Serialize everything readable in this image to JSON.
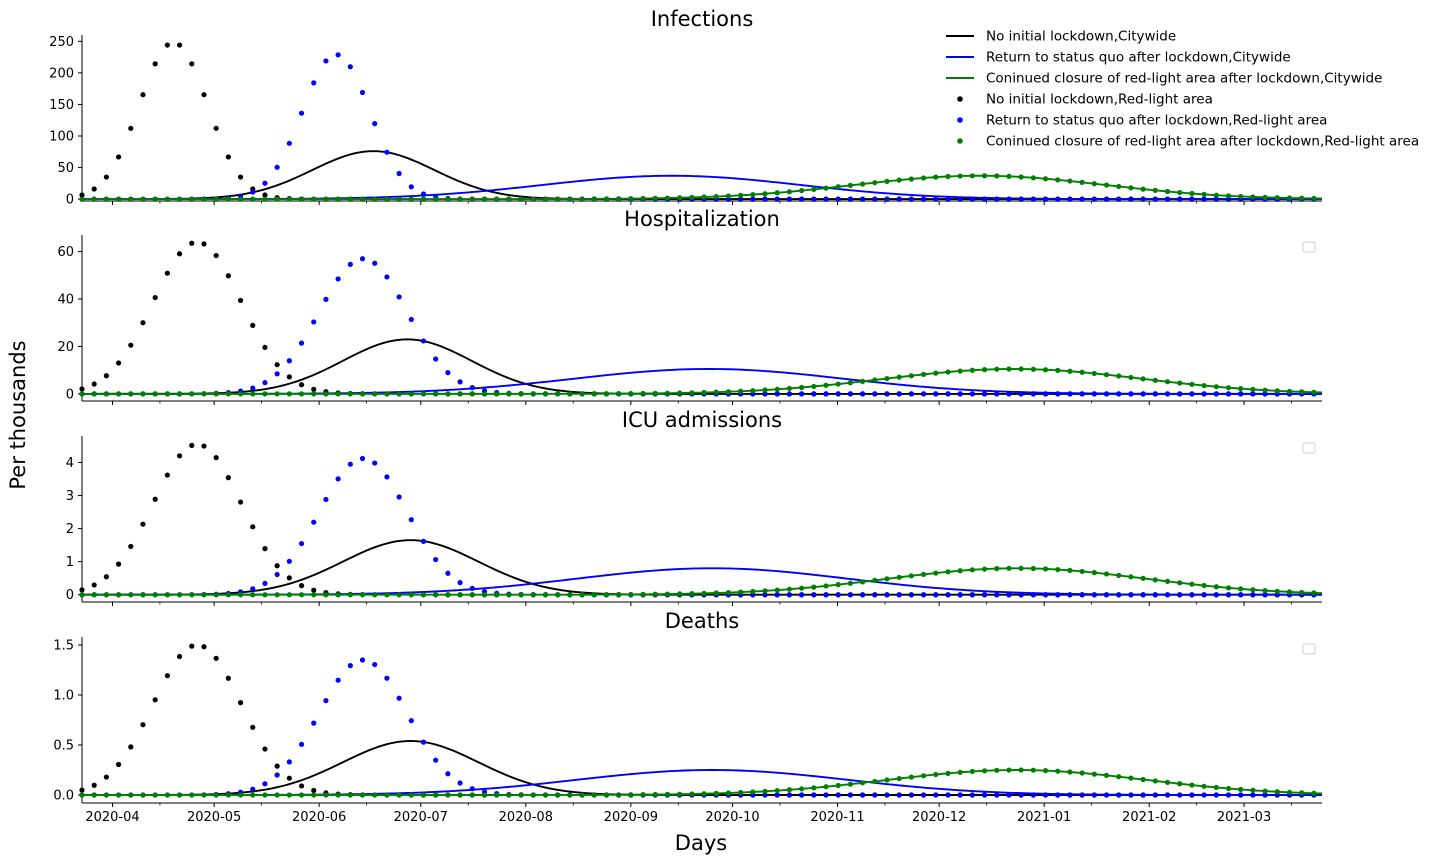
{
  "figure": {
    "ylabel": "Per thousands",
    "xlabel": "Days",
    "x_range": [
      "2020-03-23",
      "2021-03-24"
    ],
    "x_ticks": [
      "2020-04",
      "2020-05",
      "2020-06",
      "2020-07",
      "2020-08",
      "2020-09",
      "2020-10",
      "2020-11",
      "2020-12",
      "2021-01",
      "2021-02",
      "2021-03"
    ],
    "colors": {
      "black": "#000000",
      "blue": "#0000ff",
      "green": "#008000"
    }
  },
  "legend": [
    {
      "label": "No initial lockdown,Citywide",
      "color": "#000000",
      "kind": "line"
    },
    {
      "label": "Return to status quo after lockdown,Citywide",
      "color": "#0000ff",
      "kind": "line"
    },
    {
      "label": "Coninued closure of red-light area after lockdown,Citywide",
      "color": "#008000",
      "kind": "line"
    },
    {
      "label": "No initial lockdown,Red-light area",
      "color": "#000000",
      "kind": "dots"
    },
    {
      "label": "Return to status quo after lockdown,Red-light area",
      "color": "#0000ff",
      "kind": "dots"
    },
    {
      "label": "Coninued closure of red-light area after lockdown,Red-light area",
      "color": "#008000",
      "kind": "dots"
    }
  ],
  "chart_data": [
    {
      "type": "line",
      "title": "Infections",
      "ylim": [
        -3,
        260
      ],
      "yticks": [
        0,
        50,
        100,
        150,
        200,
        250
      ],
      "ytick_labels": [
        "0",
        "50",
        "100",
        "150",
        "200",
        "250"
      ],
      "series": [
        {
          "name": "No initial lockdown,Citywide",
          "style": "line",
          "color": "#000000",
          "peak_date": "2020-06-17",
          "peak": 76,
          "width_days": 18
        },
        {
          "name": "Return to status quo after lockdown,Citywide",
          "style": "line",
          "color": "#0000ff",
          "peak_date": "2020-09-13",
          "peak": 37,
          "width_days": 38
        },
        {
          "name": "Coninued closure of red-light area after lockdown,Citywide",
          "style": "line",
          "color": "#008000",
          "peak_date": "2020-12-13",
          "peak": 37,
          "width_days": 37
        },
        {
          "name": "No initial lockdown,Red-light area",
          "style": "dots",
          "color": "#000000",
          "peak_date": "2020-04-19",
          "peak": 248,
          "width_days": 10
        },
        {
          "name": "Return to status quo after lockdown,Red-light area",
          "style": "dots",
          "color": "#0000ff",
          "peak_date": "2020-06-06",
          "peak": 229,
          "width_days": 10
        },
        {
          "name": "Coninued closure of red-light area after lockdown,Red-light area",
          "style": "dots",
          "color": "#008000",
          "peak_date": "2020-12-13",
          "peak": 37,
          "width_days": 37
        }
      ]
    },
    {
      "type": "line",
      "title": "Hospitalization",
      "ylim": [
        -3,
        67
      ],
      "yticks": [
        0,
        20,
        40,
        60
      ],
      "ytick_labels": [
        "0",
        "20",
        "40",
        "60"
      ],
      "series": [
        {
          "name": "No initial lockdown,Citywide",
          "style": "line",
          "color": "#000000",
          "peak_date": "2020-06-27",
          "peak": 23,
          "width_days": 19
        },
        {
          "name": "Return to status quo after lockdown,Citywide",
          "style": "line",
          "color": "#0000ff",
          "peak_date": "2020-09-24",
          "peak": 10.5,
          "width_days": 40
        },
        {
          "name": "Coninued closure of red-light area after lockdown,Citywide",
          "style": "line",
          "color": "#008000",
          "peak_date": "2020-12-23",
          "peak": 10.5,
          "width_days": 38
        },
        {
          "name": "No initial lockdown,Red-light area",
          "style": "dots",
          "color": "#000000",
          "peak_date": "2020-04-26",
          "peak": 64,
          "width_days": 13
        },
        {
          "name": "Return to status quo after lockdown,Red-light area",
          "style": "dots",
          "color": "#0000ff",
          "peak_date": "2020-06-14",
          "peak": 57,
          "width_days": 13
        },
        {
          "name": "Coninued closure of red-light area after lockdown,Red-light area",
          "style": "dots",
          "color": "#008000",
          "peak_date": "2020-12-23",
          "peak": 10.5,
          "width_days": 38
        }
      ]
    },
    {
      "type": "line",
      "title": "ICU admissions",
      "ylim": [
        -0.22,
        4.8
      ],
      "yticks": [
        0,
        1,
        2,
        3,
        4
      ],
      "ytick_labels": [
        "0",
        "1",
        "2",
        "3",
        "4"
      ],
      "series": [
        {
          "name": "No initial lockdown,Citywide",
          "style": "line",
          "color": "#000000",
          "peak_date": "2020-06-28",
          "peak": 1.65,
          "width_days": 20
        },
        {
          "name": "Return to status quo after lockdown,Citywide",
          "style": "line",
          "color": "#0000ff",
          "peak_date": "2020-09-25",
          "peak": 0.8,
          "width_days": 40
        },
        {
          "name": "Coninued closure of red-light area after lockdown,Citywide",
          "style": "line",
          "color": "#008000",
          "peak_date": "2020-12-24",
          "peak": 0.8,
          "width_days": 38
        },
        {
          "name": "No initial lockdown,Red-light area",
          "style": "dots",
          "color": "#000000",
          "peak_date": "2020-04-26",
          "peak": 4.55,
          "width_days": 13
        },
        {
          "name": "Return to status quo after lockdown,Red-light area",
          "style": "dots",
          "color": "#0000ff",
          "peak_date": "2020-06-14",
          "peak": 4.12,
          "width_days": 13
        },
        {
          "name": "Coninued closure of red-light area after lockdown,Red-light area",
          "style": "dots",
          "color": "#008000",
          "peak_date": "2020-12-24",
          "peak": 0.8,
          "width_days": 38
        }
      ]
    },
    {
      "type": "line",
      "title": "Deaths",
      "ylim": [
        -0.08,
        1.58
      ],
      "yticks": [
        0,
        0.5,
        1.0,
        1.5
      ],
      "ytick_labels": [
        "0.0",
        "0.5",
        "1.0",
        "1.5"
      ],
      "series": [
        {
          "name": "No initial lockdown,Citywide",
          "style": "line",
          "color": "#000000",
          "peak_date": "2020-06-28",
          "peak": 0.54,
          "width_days": 20
        },
        {
          "name": "Return to status quo after lockdown,Citywide",
          "style": "line",
          "color": "#0000ff",
          "peak_date": "2020-09-25",
          "peak": 0.25,
          "width_days": 40
        },
        {
          "name": "Coninued closure of red-light area after lockdown,Citywide",
          "style": "line",
          "color": "#008000",
          "peak_date": "2020-12-24",
          "peak": 0.25,
          "width_days": 38
        },
        {
          "name": "No initial lockdown,Red-light area",
          "style": "dots",
          "color": "#000000",
          "peak_date": "2020-04-26",
          "peak": 1.5,
          "width_days": 13
        },
        {
          "name": "Return to status quo after lockdown,Red-light area",
          "style": "dots",
          "color": "#0000ff",
          "peak_date": "2020-06-14",
          "peak": 1.35,
          "width_days": 13
        },
        {
          "name": "Coninued closure of red-light area after lockdown,Red-light area",
          "style": "dots",
          "color": "#008000",
          "peak_date": "2020-12-24",
          "peak": 0.25,
          "width_days": 38
        }
      ]
    }
  ]
}
